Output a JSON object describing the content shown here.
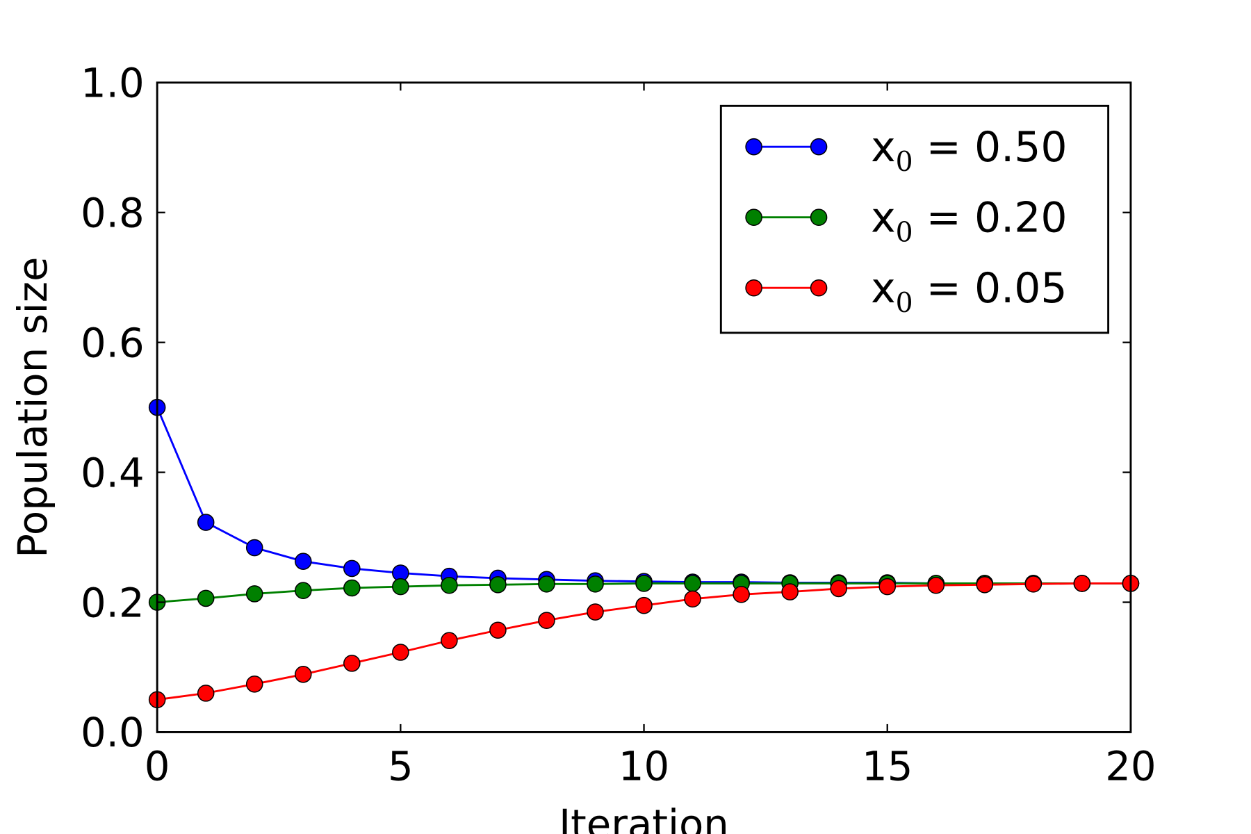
{
  "chart_data": {
    "type": "line",
    "title": "",
    "xlabel": "Iteration",
    "ylabel": "Population size",
    "xlim": [
      0,
      20
    ],
    "ylim": [
      0,
      1.0
    ],
    "xticks": [
      "0",
      "5",
      "10",
      "15",
      "20"
    ],
    "yticks": [
      "0.0",
      "0.2",
      "0.4",
      "0.6",
      "0.8",
      "1.0"
    ],
    "grid": false,
    "legend_position": "top-right",
    "x": [
      0,
      1,
      2,
      3,
      4,
      5,
      6,
      7,
      8,
      9,
      10,
      11,
      12,
      13,
      14,
      15,
      16,
      17,
      18,
      19,
      20
    ],
    "series": [
      {
        "name": "x0 = 0.50",
        "label_main": "x",
        "label_sub": "0",
        "label_rest": " = 0.50",
        "color": "#0000ff",
        "values": [
          0.5,
          0.323,
          0.284,
          0.263,
          0.252,
          0.245,
          0.24,
          0.237,
          0.235,
          0.233,
          0.232,
          0.231,
          0.231,
          0.23,
          0.23,
          0.23,
          0.229,
          0.229,
          0.229,
          0.229,
          0.229
        ]
      },
      {
        "name": "x0 = 0.20",
        "label_main": "x",
        "label_sub": "0",
        "label_rest": " = 0.20",
        "color": "#008000",
        "values": [
          0.2,
          0.206,
          0.213,
          0.218,
          0.222,
          0.224,
          0.226,
          0.227,
          0.228,
          0.228,
          0.229,
          0.229,
          0.229,
          0.229,
          0.229,
          0.229,
          0.229,
          0.229,
          0.229,
          0.229,
          0.229
        ]
      },
      {
        "name": "x0 = 0.05",
        "label_main": "x",
        "label_sub": "0",
        "label_rest": " = 0.05",
        "color": "#ff0000",
        "values": [
          0.05,
          0.06,
          0.074,
          0.089,
          0.106,
          0.123,
          0.141,
          0.157,
          0.172,
          0.185,
          0.195,
          0.205,
          0.212,
          0.216,
          0.221,
          0.224,
          0.226,
          0.227,
          0.228,
          0.229,
          0.229
        ]
      }
    ]
  }
}
